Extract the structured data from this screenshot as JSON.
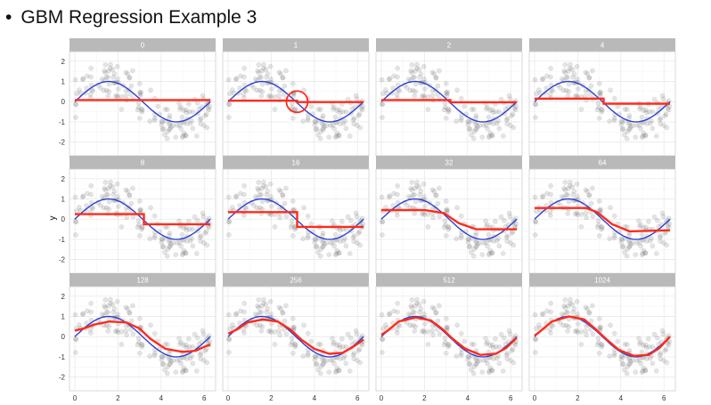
{
  "slide": {
    "bullet": "•",
    "title": "GBM Regression Example 3"
  },
  "chart_data": {
    "type": "scatter",
    "ylabel": "y",
    "xlabel": "",
    "xlim": [
      0,
      6.28
    ],
    "ylim": [
      -2.5,
      2.3
    ],
    "x_ticks": [
      0,
      2,
      4,
      6
    ],
    "y_ticks": [
      -2,
      -1,
      0,
      1,
      2
    ],
    "grid": true,
    "colors": {
      "points": "#555555",
      "true_function": "#2b3fd6",
      "prediction": "#ff2b1c",
      "strip": "#b9b9b9"
    },
    "true_function": "sin(x)",
    "panels": [
      {
        "label": "0",
        "prediction": {
          "x": [
            0,
            6.28
          ],
          "y": [
            0.08,
            0.08
          ]
        }
      },
      {
        "label": "1",
        "prediction": {
          "x": [
            0,
            3.2,
            3.2,
            6.28
          ],
          "y": [
            0.05,
            0.05,
            -0.02,
            -0.02
          ]
        },
        "annotation": {
          "shape": "circle",
          "x": 3.2,
          "y": 0.0
        }
      },
      {
        "label": "2",
        "prediction": {
          "x": [
            0,
            3.2,
            3.2,
            6.28
          ],
          "y": [
            0.08,
            0.08,
            -0.03,
            -0.03
          ]
        }
      },
      {
        "label": "4",
        "prediction": {
          "x": [
            0,
            3.2,
            3.2,
            6.28
          ],
          "y": [
            0.15,
            0.15,
            -0.1,
            -0.1
          ]
        }
      },
      {
        "label": "8",
        "prediction": {
          "x": [
            0,
            3.2,
            3.2,
            6.28
          ],
          "y": [
            0.25,
            0.25,
            -0.25,
            -0.25
          ]
        }
      },
      {
        "label": "16",
        "prediction": {
          "x": [
            0,
            3.2,
            3.2,
            6.28
          ],
          "y": [
            0.35,
            0.35,
            -0.38,
            -0.38
          ]
        }
      },
      {
        "label": "32",
        "prediction": {
          "x": [
            0,
            2.0,
            2.9,
            3.6,
            4.4,
            6.28
          ],
          "y": [
            0.45,
            0.45,
            0.3,
            -0.2,
            -0.5,
            -0.5
          ]
        }
      },
      {
        "label": "64",
        "prediction": {
          "x": [
            0,
            2.4,
            2.9,
            3.6,
            4.4,
            6.28
          ],
          "y": [
            0.55,
            0.55,
            0.35,
            -0.25,
            -0.6,
            -0.55
          ]
        }
      },
      {
        "label": "128",
        "prediction": {
          "x": [
            0,
            0.4,
            0.9,
            1.6,
            2.4,
            3.0,
            3.5,
            4.2,
            5.0,
            5.6,
            6.0,
            6.28
          ],
          "y": [
            0.3,
            0.4,
            0.6,
            0.75,
            0.7,
            0.4,
            -0.1,
            -0.6,
            -0.75,
            -0.7,
            -0.5,
            -0.4
          ]
        }
      },
      {
        "label": "256",
        "prediction": {
          "x": [
            0,
            0.4,
            0.9,
            1.6,
            2.3,
            2.9,
            3.4,
            4.0,
            4.7,
            5.3,
            5.8,
            6.28
          ],
          "y": [
            0.15,
            0.35,
            0.7,
            0.85,
            0.75,
            0.35,
            -0.15,
            -0.6,
            -0.85,
            -0.8,
            -0.5,
            -0.15
          ]
        }
      },
      {
        "label": "512",
        "prediction": {
          "x": [
            0,
            0.3,
            0.8,
            1.6,
            2.3,
            2.8,
            3.3,
            3.9,
            4.6,
            5.3,
            5.8,
            6.28
          ],
          "y": [
            0.1,
            0.3,
            0.75,
            0.95,
            0.8,
            0.4,
            -0.1,
            -0.6,
            -0.9,
            -0.85,
            -0.55,
            -0.05
          ]
        }
      },
      {
        "label": "1024",
        "prediction": {
          "x": [
            0,
            0.3,
            0.8,
            1.6,
            2.3,
            2.8,
            3.3,
            3.9,
            4.6,
            5.3,
            5.8,
            6.28
          ],
          "y": [
            0.05,
            0.3,
            0.75,
            1.0,
            0.85,
            0.4,
            -0.1,
            -0.65,
            -0.95,
            -0.9,
            -0.55,
            0.0
          ]
        }
      }
    ]
  }
}
